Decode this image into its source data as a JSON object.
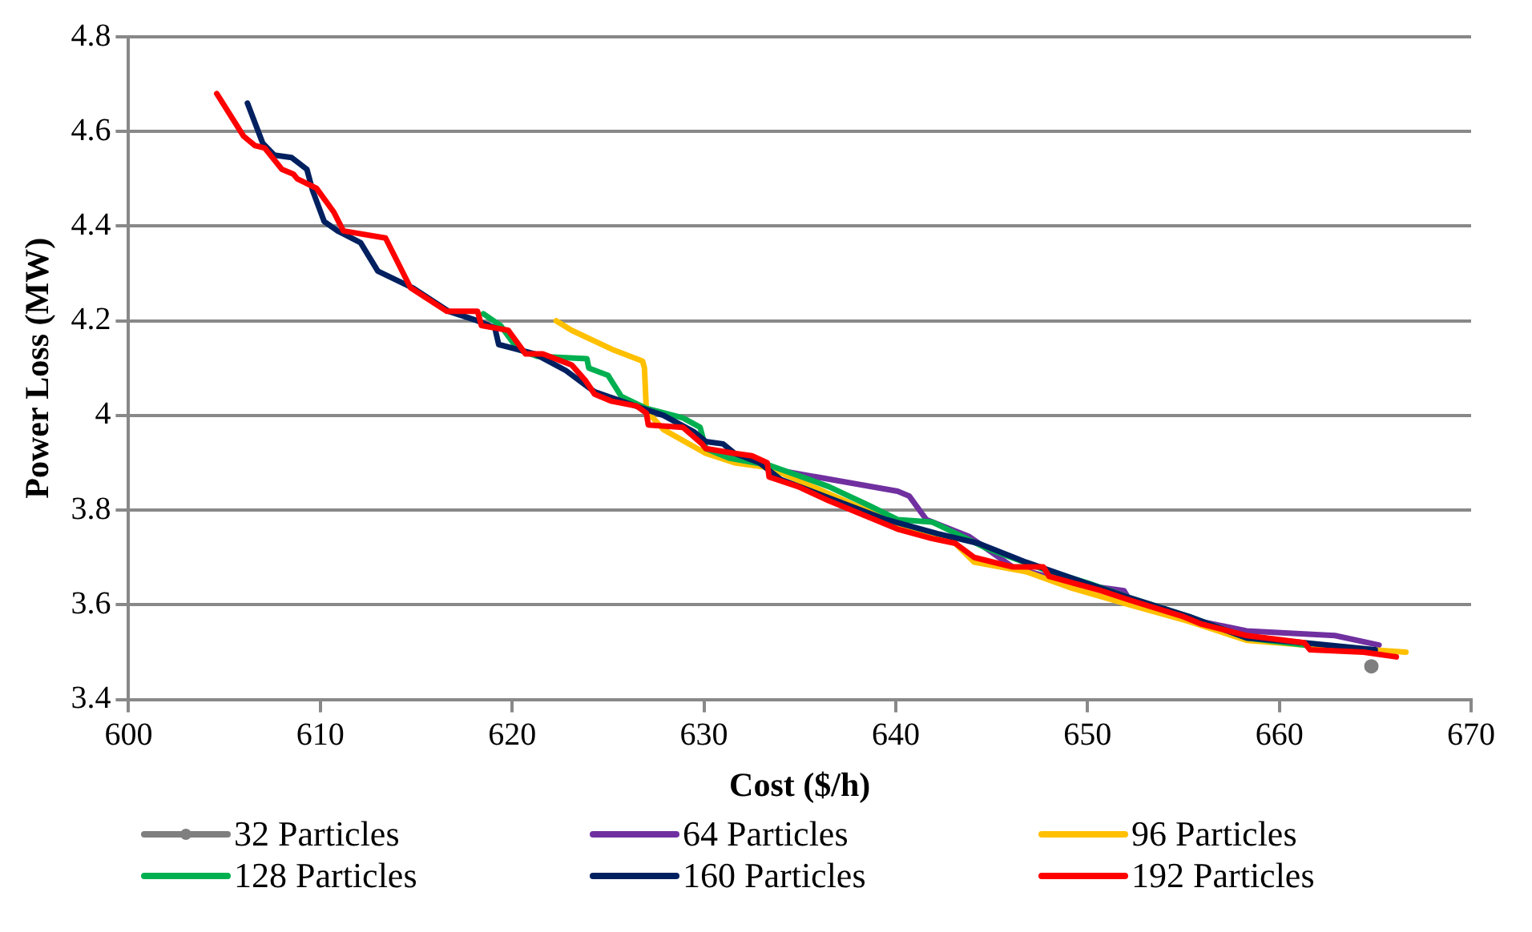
{
  "chart_data": {
    "type": "line",
    "xlabel": "Cost ($/h)",
    "ylabel": "Power Loss (MW)",
    "xlim": [
      600,
      670
    ],
    "xticks": [
      600,
      610,
      620,
      630,
      640,
      650,
      660,
      670
    ],
    "ylim": [
      3.4,
      4.8
    ],
    "yticks": [
      3.4,
      3.6,
      3.8,
      4,
      4.2,
      4.4,
      4.6,
      4.8
    ],
    "grid": "y",
    "legend": "bottom",
    "line_style": "solid",
    "series": [
      {
        "name": "32 Particles",
        "color": "#7f7f7f",
        "type": "scatter",
        "marker": "circle",
        "x": [
          664.8
        ],
        "values": [
          3.47
        ]
      },
      {
        "name": "64 Particles",
        "color": "#7030a0",
        "marker": "none",
        "x": [
          630.0,
          633.8,
          640.1,
          640.7,
          641.6,
          643.8,
          646.1,
          649.2,
          651.9,
          652.2,
          655.9,
          658.3,
          662.9,
          665.2
        ],
        "values": [
          3.93,
          3.885,
          3.84,
          3.83,
          3.78,
          3.745,
          3.68,
          3.645,
          3.63,
          3.61,
          3.565,
          3.545,
          3.535,
          3.515
        ]
      },
      {
        "name": "96 Particles",
        "color": "#ffc000",
        "marker": "none",
        "x": [
          622.3,
          623.1,
          625.2,
          626.8,
          626.9,
          627.0,
          627.9,
          630.1,
          631.6,
          633.4,
          640.7,
          643.1,
          644.1,
          646.8,
          649.2,
          652.2,
          655.3,
          658.3,
          661.3,
          666.6
        ],
        "values": [
          4.2,
          4.18,
          4.14,
          4.115,
          4.1,
          4.01,
          3.97,
          3.92,
          3.9,
          3.89,
          3.76,
          3.73,
          3.69,
          3.67,
          3.635,
          3.6,
          3.565,
          3.525,
          3.515,
          3.5
        ]
      },
      {
        "name": "128 Particles",
        "color": "#00b050",
        "marker": "none",
        "x": [
          618.5,
          619.4,
          620.3,
          621.3,
          623.9,
          624.0,
          625.0,
          625.7,
          627.0,
          628.9,
          629.8,
          630.1,
          631.3,
          633.4,
          636.5,
          638.6,
          640.1,
          641.9,
          644.7,
          647.7,
          650.1,
          652.2,
          655.3,
          658.3,
          661.3
        ],
        "values": [
          4.215,
          4.19,
          4.14,
          4.125,
          4.12,
          4.1,
          4.085,
          4.04,
          4.015,
          3.995,
          3.975,
          3.93,
          3.91,
          3.895,
          3.85,
          3.81,
          3.78,
          3.775,
          3.72,
          3.675,
          3.645,
          3.615,
          3.575,
          3.53,
          3.515
        ]
      },
      {
        "name": "160 Particles",
        "color": "#002060",
        "marker": "none",
        "x": [
          606.2,
          607.0,
          607.6,
          608.5,
          609.3,
          609.6,
          610.2,
          610.9,
          612.1,
          613.0,
          614.8,
          616.7,
          618.2,
          619.1,
          619.3,
          621.2,
          622.8,
          624.3,
          626.8,
          627.9,
          629.5,
          630.1,
          631.0,
          631.6,
          632.9,
          634.0,
          639.5,
          642.2,
          644.3,
          646.8,
          650.0,
          652.2,
          655.3,
          658.3,
          661.3,
          665.0
        ],
        "values": [
          4.66,
          4.575,
          4.55,
          4.545,
          4.52,
          4.475,
          4.41,
          4.39,
          4.365,
          4.305,
          4.27,
          4.22,
          4.2,
          4.185,
          4.15,
          4.13,
          4.095,
          4.05,
          4.015,
          4.0,
          3.965,
          3.945,
          3.94,
          3.92,
          3.9,
          3.865,
          3.78,
          3.75,
          3.73,
          3.69,
          3.645,
          3.615,
          3.575,
          3.53,
          3.52,
          3.505
        ]
      },
      {
        "name": "192 Particles",
        "color": "#ff0000",
        "marker": "none",
        "x": [
          604.6,
          606.0,
          606.6,
          607.1,
          608.0,
          608.6,
          608.8,
          609.8,
          610.7,
          611.2,
          613.4,
          614.7,
          616.6,
          618.2,
          618.4,
          619.8,
          620.7,
          621.6,
          623.1,
          623.8,
          624.3,
          625.2,
          626.5,
          627.0,
          627.1,
          628.9,
          629.9,
          630.1,
          631.6,
          632.5,
          633.3,
          633.4,
          634.9,
          636.5,
          638.3,
          640.1,
          641.9,
          643.1,
          644.1,
          646.1,
          647.7,
          648.0,
          650.7,
          652.2,
          655.0,
          655.9,
          658.3,
          661.3,
          661.6,
          664.4,
          666.1
        ],
        "values": [
          4.68,
          4.59,
          4.57,
          4.565,
          4.52,
          4.51,
          4.5,
          4.48,
          4.43,
          4.39,
          4.375,
          4.27,
          4.22,
          4.22,
          4.19,
          4.18,
          4.13,
          4.13,
          4.107,
          4.075,
          4.045,
          4.03,
          4.02,
          4.005,
          3.98,
          3.975,
          3.94,
          3.93,
          3.92,
          3.915,
          3.9,
          3.87,
          3.85,
          3.82,
          3.79,
          3.76,
          3.74,
          3.73,
          3.7,
          3.68,
          3.68,
          3.66,
          3.63,
          3.61,
          3.575,
          3.56,
          3.535,
          3.52,
          3.505,
          3.5,
          3.49
        ]
      }
    ]
  }
}
